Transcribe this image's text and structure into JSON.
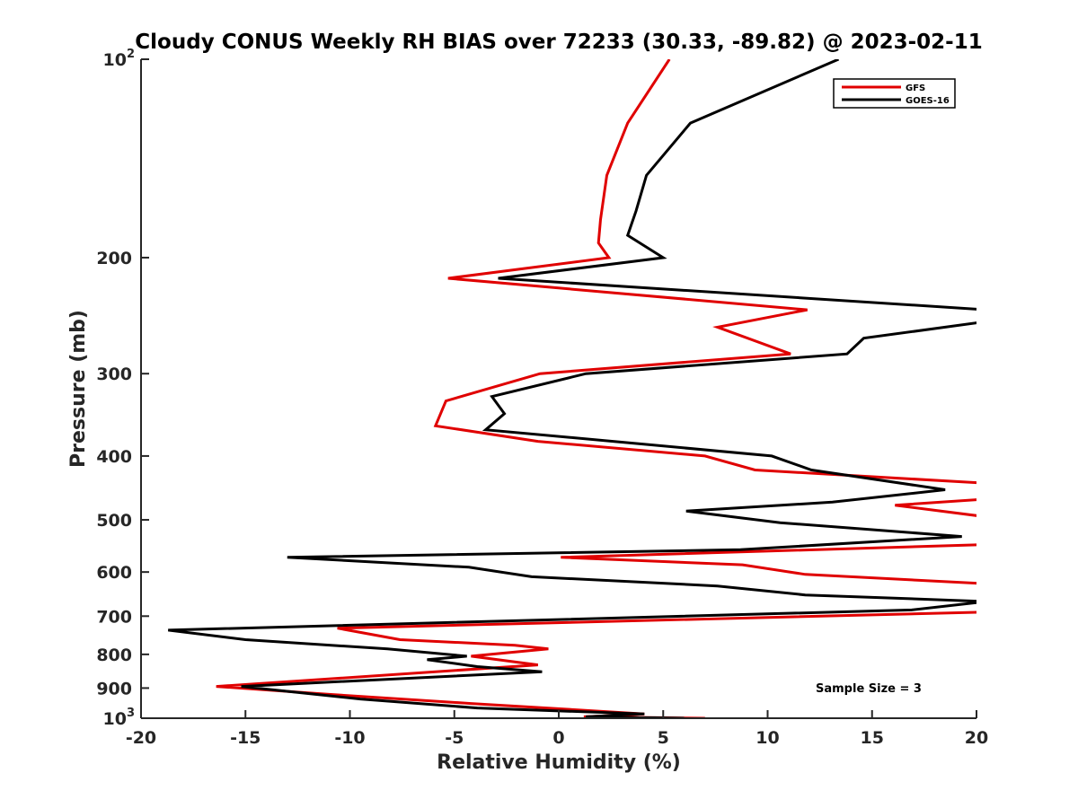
{
  "chart_data": {
    "type": "line",
    "title": "Cloudy CONUS Weekly RH BIAS over 72233 (30.33, -89.82) @ 2023-02-11",
    "xlabel": "Relative Humidity (%)",
    "ylabel": "Pressure (mb)",
    "xlim": [
      -20,
      20
    ],
    "ylim": [
      100,
      1000
    ],
    "yscale": "log",
    "yreverse": true,
    "grid": false,
    "x_ticks": [
      -20,
      -15,
      -10,
      -5,
      0,
      5,
      10,
      15,
      20
    ],
    "x_tick_labels": [
      "-20",
      "-15",
      "-10",
      "-5",
      "0",
      "5",
      "10",
      "15",
      "20"
    ],
    "y_ticks": [
      {
        "value": 100,
        "base": "10",
        "exp": "2"
      },
      {
        "value": 200,
        "label": "200"
      },
      {
        "value": 300,
        "label": "300"
      },
      {
        "value": 400,
        "label": "400"
      },
      {
        "value": 500,
        "label": "500"
      },
      {
        "value": 600,
        "label": "600"
      },
      {
        "value": 700,
        "label": "700"
      },
      {
        "value": 800,
        "label": "800"
      },
      {
        "value": 900,
        "label": "900"
      },
      {
        "value": 1000,
        "base": "10",
        "exp": "3"
      }
    ],
    "legend_position": "top-right",
    "annotation": "Sample Size = 3",
    "series": [
      {
        "name": "GFS",
        "color": "#e00000",
        "points": [
          [
            5.3,
            100
          ],
          [
            3.3,
            125
          ],
          [
            2.3,
            150
          ],
          [
            2.0,
            175
          ],
          [
            1.9,
            190
          ],
          [
            2.4,
            200
          ],
          [
            -5.3,
            215
          ],
          [
            11.9,
            240
          ],
          [
            7.6,
            255
          ],
          [
            11.1,
            280
          ],
          [
            -0.9,
            300
          ],
          [
            -5.4,
            330
          ],
          [
            -5.9,
            360
          ],
          [
            -1.0,
            380
          ],
          [
            7.0,
            400
          ],
          [
            9.4,
            420
          ],
          [
            20.5,
            440
          ],
          [
            20.5,
            465
          ],
          [
            16.1,
            475
          ],
          [
            20.5,
            495
          ],
          [
            20.5,
            545
          ],
          [
            0.1,
            570
          ],
          [
            8.8,
            585
          ],
          [
            11.8,
            605
          ],
          [
            20.5,
            625
          ],
          [
            20.5,
            690
          ],
          [
            -10.6,
            730
          ],
          [
            -7.6,
            760
          ],
          [
            -2.1,
            775
          ],
          [
            -0.5,
            785
          ],
          [
            -4.2,
            805
          ],
          [
            -1.0,
            830
          ],
          [
            -16.4,
            895
          ],
          [
            -11.0,
            920
          ],
          [
            -4.2,
            950
          ],
          [
            4.1,
            985
          ],
          [
            1.2,
            995
          ],
          [
            7.0,
            1000
          ]
        ]
      },
      {
        "name": "GOES-16",
        "color": "#000000",
        "points": [
          [
            13.4,
            100
          ],
          [
            6.3,
            125
          ],
          [
            4.2,
            150
          ],
          [
            3.7,
            170
          ],
          [
            3.3,
            185
          ],
          [
            5.0,
            200
          ],
          [
            -2.9,
            215
          ],
          [
            20.5,
            240
          ],
          [
            20.5,
            250
          ],
          [
            14.6,
            265
          ],
          [
            13.8,
            280
          ],
          [
            1.3,
            300
          ],
          [
            -3.2,
            325
          ],
          [
            -2.6,
            345
          ],
          [
            -3.5,
            365
          ],
          [
            2.6,
            380
          ],
          [
            10.2,
            400
          ],
          [
            12.1,
            420
          ],
          [
            18.5,
            450
          ],
          [
            13.1,
            470
          ],
          [
            6.1,
            485
          ],
          [
            10.6,
            505
          ],
          [
            19.3,
            530
          ],
          [
            8.7,
            555
          ],
          [
            -13.0,
            570
          ],
          [
            -4.3,
            590
          ],
          [
            -1.3,
            610
          ],
          [
            7.6,
            630
          ],
          [
            11.8,
            650
          ],
          [
            20.5,
            665
          ],
          [
            16.9,
            685
          ],
          [
            -18.7,
            735
          ],
          [
            -15.0,
            760
          ],
          [
            -8.2,
            785
          ],
          [
            -4.4,
            805
          ],
          [
            -6.3,
            815
          ],
          [
            -3.9,
            835
          ],
          [
            -0.8,
            850
          ],
          [
            -15.2,
            895
          ],
          [
            -9.5,
            935
          ],
          [
            -3.9,
            965
          ],
          [
            4.1,
            985
          ],
          [
            1.3,
            995
          ],
          [
            6.0,
            1000
          ]
        ]
      }
    ]
  }
}
